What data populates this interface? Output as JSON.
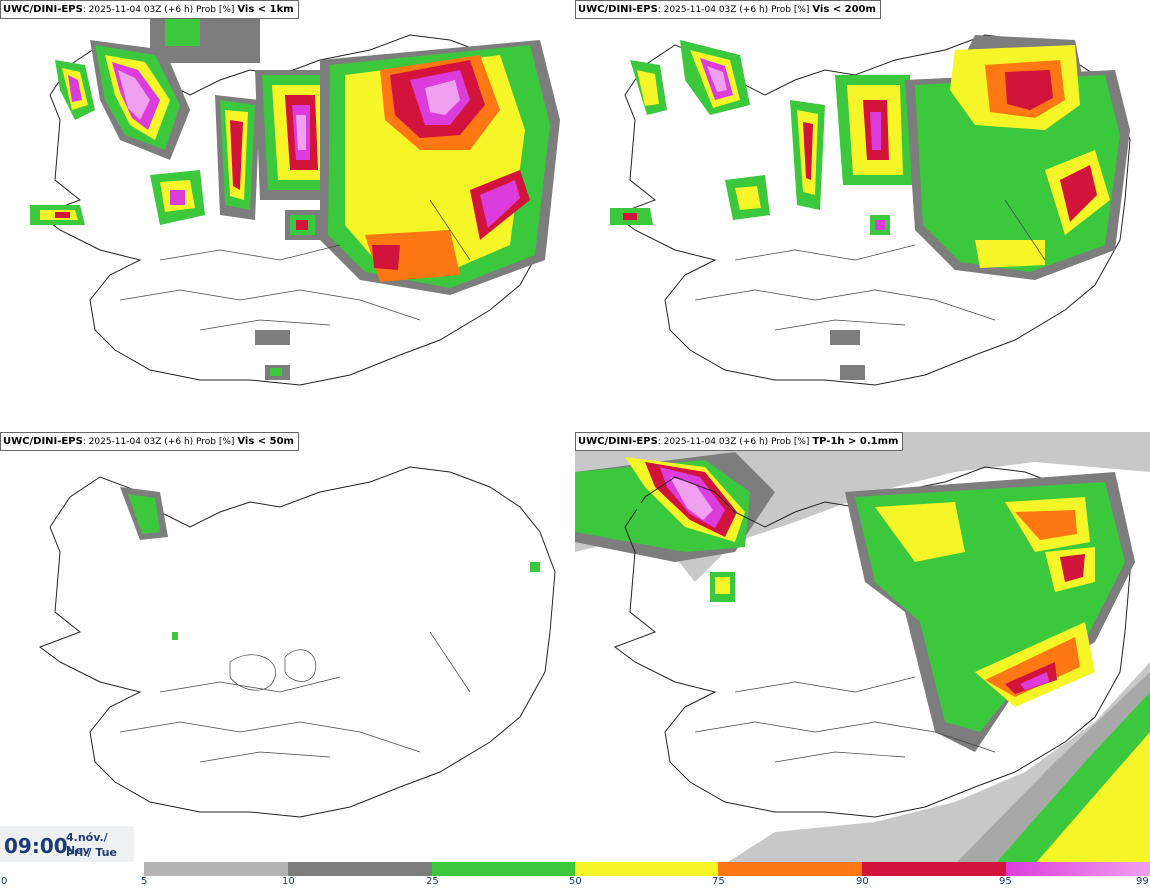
{
  "panels": [
    {
      "model": "UWC/DINI-EPS",
      "run": ": 2025-11-04 03Z (+6 h) Prob [%]",
      "variable": "Vis < 1km"
    },
    {
      "model": "UWC/DINI-EPS",
      "run": ": 2025-11-04 03Z (+6 h) Prob [%]",
      "variable": "Vis < 200m"
    },
    {
      "model": "UWC/DINI-EPS",
      "run": ": 2025-11-04 03Z (+6 h) Prob [%]",
      "variable": "Vis < 50m"
    },
    {
      "model": "UWC/DINI-EPS",
      "run": ": 2025-11-04 03Z (+6 h) Prob [%]",
      "variable": "TP-1h > 0.1mm"
    }
  ],
  "valid_time": {
    "time": "09:00",
    "date_line": "4.nóv./ Nov",
    "day_line": "Þri./ Tue"
  },
  "colorbar": {
    "ticks": [
      "0",
      "5",
      "10",
      "25",
      "50",
      "75",
      "90",
      "95",
      "99"
    ],
    "colors": {
      "light_gray": "#b4b4b4",
      "dark_gray": "#7d7d7d",
      "green": "#3cc83c",
      "yellow": "#f5f528",
      "orange": "#ff7814",
      "red": "#d2143c",
      "magenta": "#dc3cdc",
      "pink": "#f0a0f0"
    }
  }
}
